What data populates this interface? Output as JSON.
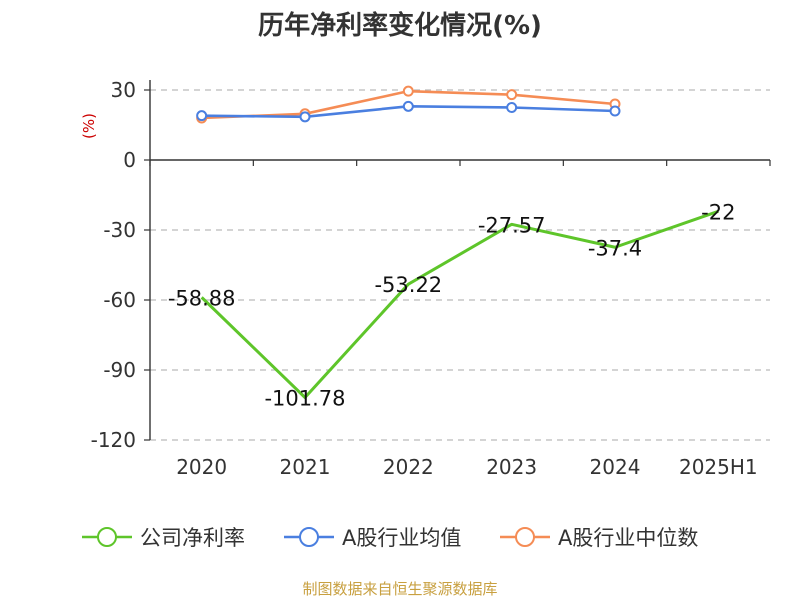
{
  "chart_data": {
    "type": "line",
    "title": "历年净利率变化情况(%)",
    "ylabel": "(%)",
    "categories": [
      "2020",
      "2021",
      "2022",
      "2023",
      "2024",
      "2025H1"
    ],
    "y_ticks": [
      "30",
      "0",
      "-30",
      "-60",
      "-90",
      "-120"
    ],
    "ylim": [
      -120,
      30
    ],
    "grid": true,
    "legend_position": "bottom",
    "series": [
      {
        "name": "公司净利率",
        "color": "#5ec52a",
        "values": [
          -58.88,
          -101.78,
          -53.22,
          -27.57,
          -37.4,
          -22
        ],
        "labels": [
          "-58.88",
          "-101.78",
          "-53.22",
          "-27.57",
          "-37.4",
          "-22"
        ]
      },
      {
        "name": "A股行业均值",
        "color": "#4a7fe0",
        "values": [
          19.0,
          18.5,
          23.0,
          22.5,
          21.0,
          null
        ]
      },
      {
        "name": "A股行业中位数",
        "color": "#f58c55",
        "values": [
          18.0,
          19.8,
          29.5,
          28.0,
          24.0,
          null
        ]
      }
    ]
  },
  "source": "制图数据来自恒生聚源数据库",
  "colors": {
    "unit": "#cc0000",
    "source": "#c8a040",
    "grid": "#bbbbbb",
    "axis": "#333333"
  }
}
